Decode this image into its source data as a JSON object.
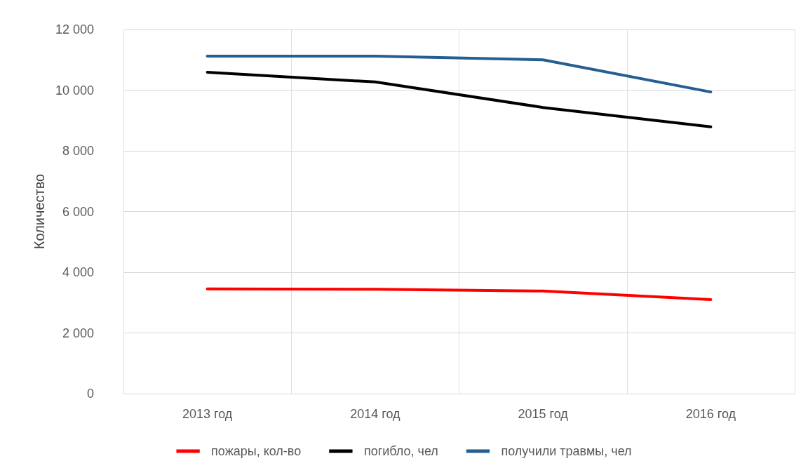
{
  "chart_data": {
    "type": "line",
    "ylabel": "Количество",
    "categories": [
      "2013 год",
      "2014 год",
      "2015 год",
      "2016 год"
    ],
    "series": [
      {
        "name": "пожары, кол-во",
        "color": "#ff0000",
        "values": [
          3450,
          3440,
          3380,
          3100
        ]
      },
      {
        "name": "погибло, чел",
        "color": "#000000",
        "values": [
          10590,
          10270,
          9430,
          8790
        ]
      },
      {
        "name": "получили травмы, чел",
        "color": "#255e91",
        "values": [
          11120,
          11120,
          11000,
          9940
        ]
      }
    ],
    "ylim": [
      0,
      12000
    ],
    "yticks": [
      0,
      {
        "value": 2000,
        "label": "2 000"
      },
      {
        "value": 4000,
        "label": "4 000"
      },
      {
        "value": 6000,
        "label": "6 000"
      },
      {
        "value": 8000,
        "label": "8 000"
      },
      {
        "value": 10000,
        "label": "10 000"
      },
      {
        "value": 12000,
        "label": "12 000"
      }
    ],
    "grid": true,
    "legend": "bottom",
    "marker": "none",
    "line_style": "solid"
  }
}
